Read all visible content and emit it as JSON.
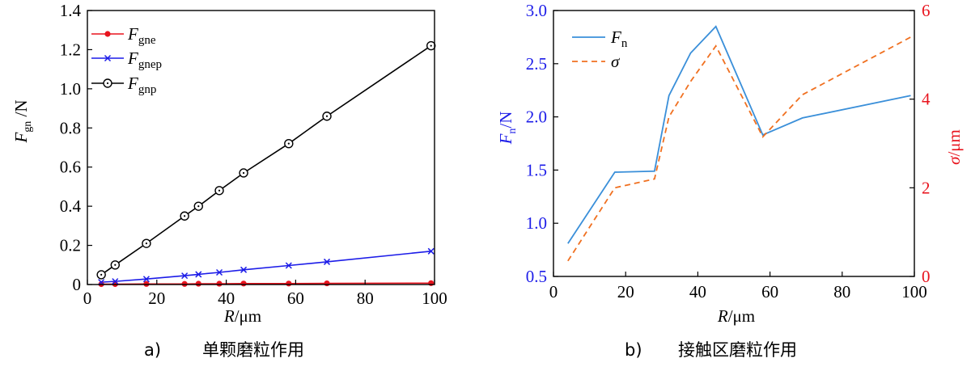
{
  "chart_data": [
    {
      "type": "line",
      "caption": "a)　单颗磨粒作用",
      "caption_letter": "a)",
      "caption_text": "单颗磨粒作用",
      "xlabel_var": "R",
      "xlabel_unit": "/μm",
      "ylabel_var": "F",
      "ylabel_sub": "gn",
      "ylabel_unit": " /N",
      "xlim": [
        0,
        100
      ],
      "ylim": [
        0,
        1.4
      ],
      "xticks": [
        0,
        20,
        40,
        60,
        80,
        100
      ],
      "yticks": [
        0,
        0.2,
        0.4,
        0.6,
        0.8,
        1.0,
        1.2,
        1.4
      ],
      "ytick_labels": [
        "0",
        "0.2",
        "0.4",
        "0.6",
        "0.8",
        "1.0",
        "1.2",
        "1.4"
      ],
      "legend_position": "top-left",
      "series": [
        {
          "name": "F",
          "name_sub": "gne",
          "color": "#e8141e",
          "marker": "dot",
          "x": [
            4,
            8,
            17,
            28,
            32,
            38,
            45,
            58,
            69,
            99
          ],
          "y": [
            0.002,
            0.002,
            0.003,
            0.003,
            0.004,
            0.004,
            0.005,
            0.005,
            0.006,
            0.007
          ]
        },
        {
          "name": "F",
          "name_sub": "gnep",
          "color": "#1c1ce8",
          "marker": "x",
          "x": [
            4,
            8,
            17,
            28,
            32,
            38,
            45,
            58,
            69,
            99
          ],
          "y": [
            0.012,
            0.016,
            0.028,
            0.045,
            0.052,
            0.062,
            0.075,
            0.097,
            0.116,
            0.17
          ]
        },
        {
          "name": "F",
          "name_sub": "gnp",
          "color": "#000000",
          "marker": "circle",
          "x": [
            4,
            8,
            17,
            28,
            32,
            38,
            45,
            58,
            69,
            99
          ],
          "y": [
            0.05,
            0.1,
            0.21,
            0.35,
            0.4,
            0.48,
            0.57,
            0.72,
            0.86,
            1.22
          ]
        }
      ]
    },
    {
      "type": "line",
      "caption": "b)　接触区磨粒作用",
      "caption_letter": "b)",
      "caption_text": "接触区磨粒作用",
      "xlabel_var": "R",
      "xlabel_unit": "/μm",
      "ylabel_left_var": "F",
      "ylabel_left_sub": "n",
      "ylabel_left_unit": "/N",
      "ylabel_right_var": "σ",
      "ylabel_right_unit": "/μm",
      "xlim": [
        0,
        100
      ],
      "ylim_left": [
        0.5,
        3.0
      ],
      "ylim_right": [
        0,
        6
      ],
      "xticks": [
        0,
        20,
        40,
        60,
        80,
        100
      ],
      "yticks_left": [
        0.5,
        1.0,
        1.5,
        2.0,
        2.5,
        3.0
      ],
      "ytick_labels_left": [
        "0.5",
        "1.0",
        "1.5",
        "2.0",
        "2.5",
        "3.0"
      ],
      "yticks_right": [
        0,
        2,
        4,
        6
      ],
      "legend_position": "top-left",
      "colors": {
        "left_axis": "#1c1ce8",
        "right_axis": "#e8141e"
      },
      "series": [
        {
          "name": "F",
          "name_sub": "n",
          "color": "#3a8fd9",
          "dash": false,
          "axis": "left",
          "x": [
            4,
            17,
            28,
            32,
            38,
            45,
            58,
            69,
            99
          ],
          "y": [
            0.81,
            1.48,
            1.49,
            2.2,
            2.6,
            2.85,
            1.83,
            1.99,
            2.2
          ]
        },
        {
          "name": "σ",
          "name_sub": "",
          "color": "#f07020",
          "dash": true,
          "axis": "right",
          "x": [
            4,
            17,
            28,
            32,
            38,
            45,
            58,
            69,
            99
          ],
          "y": [
            0.35,
            2.0,
            2.2,
            3.6,
            4.4,
            5.2,
            3.15,
            4.1,
            5.4
          ]
        }
      ]
    }
  ]
}
